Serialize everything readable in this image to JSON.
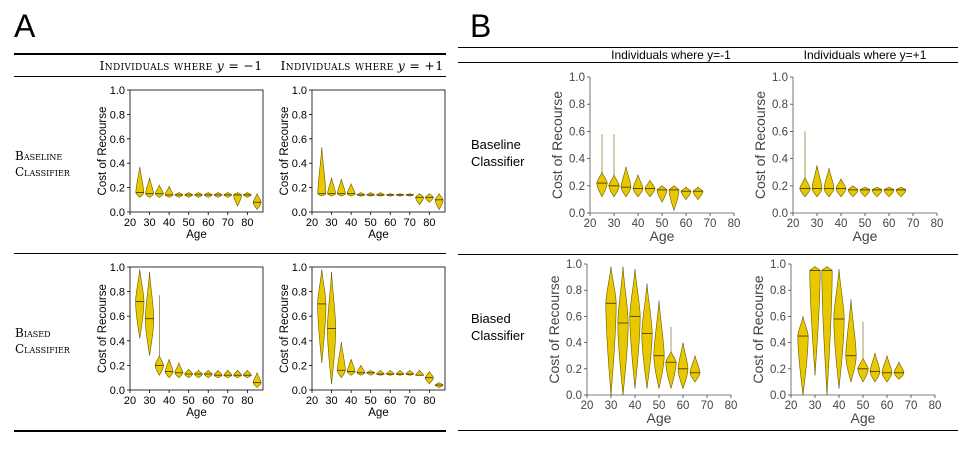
{
  "panel_a": {
    "letter": "A",
    "col_headers": [
      {
        "prefix": "Individuals where ",
        "var": "y",
        "suffix": " = −1"
      },
      {
        "prefix": "Individuals where ",
        "var": "y",
        "suffix": " = +1"
      }
    ],
    "row_labels": [
      {
        "line1": "Baseline",
        "line2": "Classifier"
      },
      {
        "line1": "Biased",
        "line2": "Classifier"
      }
    ]
  },
  "panel_b": {
    "letter": "B",
    "col_headers": [
      "Individuals where y=-1",
      "Individuals where y=+1"
    ],
    "row_labels": [
      {
        "line1": "Baseline",
        "line2": "Classifier"
      },
      {
        "line1": "Biased",
        "line2": "Classifier"
      }
    ]
  },
  "colors": {
    "violin_fill": "#e8c800",
    "violin_edge": "#6b5a00",
    "median_line": "#4a3e00"
  },
  "chart_data": [
    {
      "id": "A-baseline-neg",
      "type": "violin",
      "xlabel": "Age",
      "ylabel": "Cost of Recourse",
      "xticks": [
        20,
        30,
        40,
        50,
        60,
        70,
        80
      ],
      "yticks": [
        "0.0",
        "0.2",
        "0.4",
        "0.6",
        "0.8",
        "1.0"
      ],
      "xlim": [
        20,
        88
      ],
      "ylim": [
        0,
        1
      ],
      "ages": [
        25,
        30,
        35,
        40,
        45,
        50,
        55,
        60,
        65,
        70,
        75,
        80,
        85
      ],
      "lows": [
        0.12,
        0.12,
        0.12,
        0.12,
        0.12,
        0.12,
        0.12,
        0.12,
        0.12,
        0.12,
        0.05,
        0.12,
        0.02
      ],
      "medians": [
        0.16,
        0.15,
        0.15,
        0.14,
        0.14,
        0.14,
        0.14,
        0.14,
        0.14,
        0.14,
        0.14,
        0.14,
        0.08
      ],
      "highs": [
        0.37,
        0.28,
        0.22,
        0.21,
        0.16,
        0.16,
        0.16,
        0.16,
        0.16,
        0.16,
        0.16,
        0.16,
        0.15
      ]
    },
    {
      "id": "A-baseline-pos",
      "type": "violin",
      "xlabel": "Age",
      "ylabel": "Cost of Recourse",
      "xticks": [
        20,
        30,
        40,
        50,
        60,
        70,
        80
      ],
      "yticks": [
        "0.0",
        "0.2",
        "0.4",
        "0.6",
        "0.8",
        "1.0"
      ],
      "xlim": [
        20,
        88
      ],
      "ylim": [
        0,
        1
      ],
      "ages": [
        25,
        30,
        35,
        40,
        45,
        50,
        55,
        60,
        65,
        70,
        75,
        80,
        85
      ],
      "lows": [
        0.13,
        0.13,
        0.13,
        0.13,
        0.13,
        0.13,
        0.13,
        0.13,
        0.13,
        0.13,
        0.06,
        0.08,
        0.02
      ],
      "medians": [
        0.15,
        0.15,
        0.15,
        0.15,
        0.14,
        0.14,
        0.14,
        0.14,
        0.14,
        0.14,
        0.12,
        0.12,
        0.1
      ],
      "highs": [
        0.53,
        0.28,
        0.27,
        0.23,
        0.16,
        0.16,
        0.16,
        0.15,
        0.15,
        0.15,
        0.15,
        0.15,
        0.15
      ]
    },
    {
      "id": "A-biased-neg",
      "type": "violin",
      "xlabel": "Age",
      "ylabel": "Cost of Recourse",
      "xticks": [
        20,
        30,
        40,
        50,
        60,
        70,
        80
      ],
      "yticks": [
        "0.0",
        "0.2",
        "0.4",
        "0.6",
        "0.8",
        "1.0"
      ],
      "xlim": [
        20,
        88
      ],
      "ylim": [
        0,
        1
      ],
      "ages": [
        25,
        30,
        35,
        40,
        45,
        50,
        55,
        60,
        65,
        70,
        75,
        80,
        85
      ],
      "lows": [
        0.42,
        0.28,
        0.12,
        0.1,
        0.1,
        0.1,
        0.1,
        0.1,
        0.1,
        0.1,
        0.1,
        0.1,
        0.02
      ],
      "medians": [
        0.72,
        0.58,
        0.2,
        0.15,
        0.14,
        0.13,
        0.13,
        0.13,
        0.12,
        0.12,
        0.12,
        0.12,
        0.06
      ],
      "highs": [
        0.98,
        0.96,
        0.77,
        0.25,
        0.22,
        0.17,
        0.16,
        0.16,
        0.16,
        0.16,
        0.16,
        0.16,
        0.14
      ]
    },
    {
      "id": "A-biased-pos",
      "type": "violin",
      "xlabel": "Age",
      "ylabel": "Cost of Recourse",
      "xticks": [
        20,
        30,
        40,
        50,
        60,
        70,
        80
      ],
      "yticks": [
        "0.0",
        "0.2",
        "0.4",
        "0.6",
        "0.8",
        "1.0"
      ],
      "xlim": [
        20,
        88
      ],
      "ylim": [
        0,
        1
      ],
      "ages": [
        25,
        30,
        35,
        40,
        45,
        50,
        55,
        60,
        65,
        70,
        75,
        80,
        85
      ],
      "lows": [
        0.22,
        0.05,
        0.1,
        0.12,
        0.12,
        0.12,
        0.12,
        0.12,
        0.12,
        0.12,
        0.12,
        0.05,
        0.02
      ],
      "medians": [
        0.7,
        0.5,
        0.16,
        0.15,
        0.14,
        0.14,
        0.13,
        0.13,
        0.13,
        0.13,
        0.12,
        0.1,
        0.04
      ],
      "highs": [
        0.98,
        0.96,
        0.39,
        0.25,
        0.2,
        0.16,
        0.16,
        0.16,
        0.16,
        0.16,
        0.16,
        0.15,
        0.06
      ]
    },
    {
      "id": "B-baseline-neg",
      "type": "violin",
      "xlabel": "Age",
      "ylabel": "Cost of Recourse",
      "xticks": [
        20,
        30,
        40,
        50,
        60,
        70,
        80
      ],
      "yticks": [
        "0.0",
        "0.2",
        "0.4",
        "0.6",
        "0.8",
        "1.0"
      ],
      "xlim": [
        20,
        80
      ],
      "ylim": [
        0,
        1
      ],
      "ages": [
        25,
        30,
        35,
        40,
        45,
        50,
        55,
        60,
        65
      ],
      "lows": [
        0.12,
        0.12,
        0.12,
        0.12,
        0.12,
        0.08,
        0.02,
        0.1,
        0.1
      ],
      "medians": [
        0.22,
        0.2,
        0.19,
        0.18,
        0.18,
        0.17,
        0.17,
        0.16,
        0.16
      ],
      "highs": [
        0.58,
        0.58,
        0.34,
        0.28,
        0.24,
        0.2,
        0.2,
        0.19,
        0.19
      ]
    },
    {
      "id": "B-baseline-pos",
      "type": "violin",
      "xlabel": "Age",
      "ylabel": "Cost of Recourse",
      "xticks": [
        20,
        30,
        40,
        50,
        60,
        70,
        80
      ],
      "yticks": [
        "0.0",
        "0.2",
        "0.4",
        "0.6",
        "0.8",
        "1.0"
      ],
      "xlim": [
        20,
        80
      ],
      "ylim": [
        0,
        1
      ],
      "ages": [
        25,
        30,
        35,
        40,
        45,
        50,
        55,
        60,
        65
      ],
      "lows": [
        0.12,
        0.12,
        0.12,
        0.12,
        0.12,
        0.12,
        0.12,
        0.12,
        0.12
      ],
      "medians": [
        0.18,
        0.18,
        0.18,
        0.18,
        0.17,
        0.17,
        0.17,
        0.17,
        0.17
      ],
      "highs": [
        0.6,
        0.35,
        0.33,
        0.25,
        0.2,
        0.19,
        0.19,
        0.19,
        0.19
      ]
    },
    {
      "id": "B-biased-neg",
      "type": "violin",
      "xlabel": "Age",
      "ylabel": "Cost of Recourse",
      "xticks": [
        20,
        30,
        40,
        50,
        60,
        70,
        80
      ],
      "yticks": [
        "0.0",
        "0.2",
        "0.4",
        "0.6",
        "0.8",
        "1.0"
      ],
      "xlim": [
        20,
        80
      ],
      "ylim": [
        0,
        1
      ],
      "ages": [
        30,
        35,
        40,
        45,
        50,
        55,
        60,
        65
      ],
      "lows": [
        0.0,
        0.0,
        0.05,
        0.05,
        0.05,
        0.05,
        0.05,
        0.1
      ],
      "medians": [
        0.7,
        0.55,
        0.6,
        0.47,
        0.3,
        0.25,
        0.2,
        0.17
      ],
      "highs": [
        0.98,
        0.98,
        0.96,
        0.85,
        0.72,
        0.52,
        0.4,
        0.3
      ]
    },
    {
      "id": "B-biased-pos",
      "type": "violin",
      "xlabel": "Age",
      "ylabel": "Cost of Recourse",
      "xticks": [
        20,
        30,
        40,
        50,
        60,
        70,
        80
      ],
      "yticks": [
        "0.0",
        "0.2",
        "0.4",
        "0.6",
        "0.8",
        "1.0"
      ],
      "xlim": [
        20,
        80
      ],
      "ylim": [
        0,
        1
      ],
      "ages": [
        25,
        30,
        35,
        40,
        45,
        50,
        55,
        60,
        65
      ],
      "lows": [
        0.0,
        0.15,
        0.0,
        0.05,
        0.1,
        0.1,
        0.1,
        0.1,
        0.12
      ],
      "medians": [
        0.45,
        0.95,
        0.95,
        0.58,
        0.3,
        0.2,
        0.18,
        0.17,
        0.17
      ],
      "highs": [
        0.6,
        0.98,
        0.98,
        0.96,
        0.73,
        0.56,
        0.32,
        0.3,
        0.25
      ]
    }
  ]
}
